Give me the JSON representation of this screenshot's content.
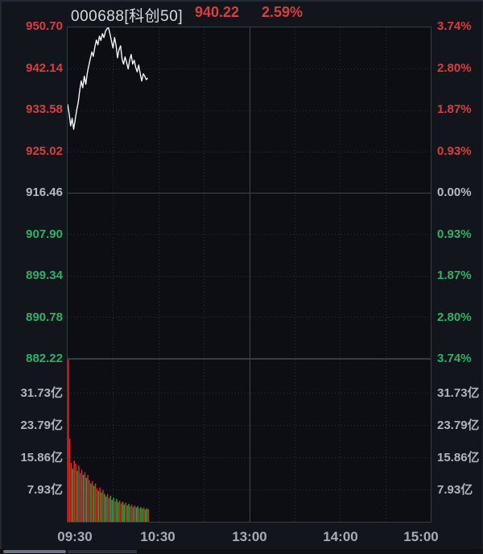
{
  "header": {
    "symbol": "000688[科创50]",
    "price": "940.22",
    "change_pct": "2.59%"
  },
  "colors": {
    "up": "#d93e3e",
    "down": "#2db368",
    "flat": "#b7bac1",
    "gray": "#b0b4bc",
    "xaxis_gray": "#a7abb4",
    "line": "#f4f4f4",
    "grid_dotted": "#2c3039",
    "grid_solid": "#3f4450",
    "panel_border": "#363b46",
    "bar_up": "#d22f2f",
    "bar_down": "#27a83d",
    "background": "#13151c",
    "panel_background": "#0c0e13"
  },
  "chart_data": {
    "type": "line",
    "title": "000688[科创50] 940.22 2.59%",
    "x_axis": {
      "labels": [
        "09:30",
        "10:30",
        "13:00",
        "14:00",
        "15:00"
      ],
      "total_minutes": 240,
      "gridline_interval_minutes": 30,
      "session_break_at_fraction": 0.5
    },
    "price_axis": {
      "max": 950.7,
      "min": 882.22,
      "prev_close": 916.46,
      "ticks": [
        {
          "label": "950.70",
          "value": 950.7,
          "tone": "up"
        },
        {
          "label": "942.14",
          "value": 942.14,
          "tone": "up"
        },
        {
          "label": "933.58",
          "value": 933.58,
          "tone": "up"
        },
        {
          "label": "925.02",
          "value": 925.02,
          "tone": "up"
        },
        {
          "label": "916.46",
          "value": 916.46,
          "tone": "flat"
        },
        {
          "label": "907.90",
          "value": 907.9,
          "tone": "down"
        },
        {
          "label": "899.34",
          "value": 899.34,
          "tone": "down"
        },
        {
          "label": "890.78",
          "value": 890.78,
          "tone": "down"
        },
        {
          "label": "882.22",
          "value": 882.22,
          "tone": "down"
        }
      ]
    },
    "pct_axis": {
      "ticks": [
        {
          "label": "3.74%",
          "tone": "up"
        },
        {
          "label": "2.80%",
          "tone": "up"
        },
        {
          "label": "1.87%",
          "tone": "up"
        },
        {
          "label": "0.93%",
          "tone": "up"
        },
        {
          "label": "0.00%",
          "tone": "flat"
        },
        {
          "label": "0.93%",
          "tone": "down"
        },
        {
          "label": "1.87%",
          "tone": "down"
        },
        {
          "label": "2.80%",
          "tone": "down"
        },
        {
          "label": "3.74%",
          "tone": "down"
        }
      ]
    },
    "volume_axis": {
      "unit": "亿",
      "max": 40.26,
      "ticks": [
        {
          "label": "31.73亿",
          "value": 31.73
        },
        {
          "label": "23.79亿",
          "value": 23.79
        },
        {
          "label": "15.86亿",
          "value": 15.86
        },
        {
          "label": "7.93亿",
          "value": 7.93
        }
      ]
    },
    "series": {
      "start_time": "09:30",
      "interval_minutes": 1,
      "price": [
        934.8,
        932.8,
        930.3,
        931.9,
        929.6,
        931.6,
        933.6,
        935.2,
        937.6,
        939.6,
        938.2,
        940.6,
        938.9,
        941.2,
        942.8,
        944.2,
        945.6,
        944.7,
        946.6,
        948.1,
        947.1,
        948.9,
        948.0,
        949.4,
        948.6,
        949.9,
        950.4,
        950.7,
        949.4,
        947.9,
        946.4,
        948.6,
        947.1,
        944.4,
        946.1,
        946.9,
        944.1,
        943.1,
        944.6,
        943.4,
        942.1,
        943.9,
        945.1,
        943.1,
        943.9,
        942.4,
        941.5,
        942.9,
        941.1,
        939.6,
        941.1,
        940.6,
        939.9,
        940.22
      ],
      "volume": [
        40.2,
        20.4,
        14.5,
        13.0,
        15.0,
        14.2,
        12.5,
        13.8,
        12.0,
        12.8,
        11.5,
        12.2,
        10.8,
        11.5,
        10.2,
        9.4,
        10.0,
        8.8,
        9.4,
        8.2,
        7.6,
        8.4,
        7.2,
        7.8,
        6.8,
        6.2,
        6.8,
        5.8,
        6.4,
        5.4,
        5.9,
        5.0,
        5.6,
        4.8,
        5.2,
        4.5,
        4.9,
        4.2,
        4.7,
        4.0,
        4.4,
        3.8,
        4.2,
        3.6,
        4.0,
        3.5,
        3.8,
        3.3,
        3.6,
        3.2,
        3.5,
        3.0,
        3.3,
        3.1
      ],
      "volume_tone": [
        "u",
        "u",
        "u",
        "d",
        "u",
        "u",
        "d",
        "u",
        "u",
        "u",
        "d",
        "u",
        "d",
        "u",
        "u",
        "d",
        "u",
        "d",
        "u",
        "u",
        "d",
        "u",
        "d",
        "u",
        "d",
        "d",
        "u",
        "u",
        "d",
        "d",
        "d",
        "u",
        "d",
        "d",
        "u",
        "u",
        "d",
        "d",
        "u",
        "d",
        "d",
        "u",
        "u",
        "d",
        "u",
        "d",
        "d",
        "u",
        "d",
        "d",
        "u",
        "d",
        "d",
        "u"
      ]
    }
  }
}
